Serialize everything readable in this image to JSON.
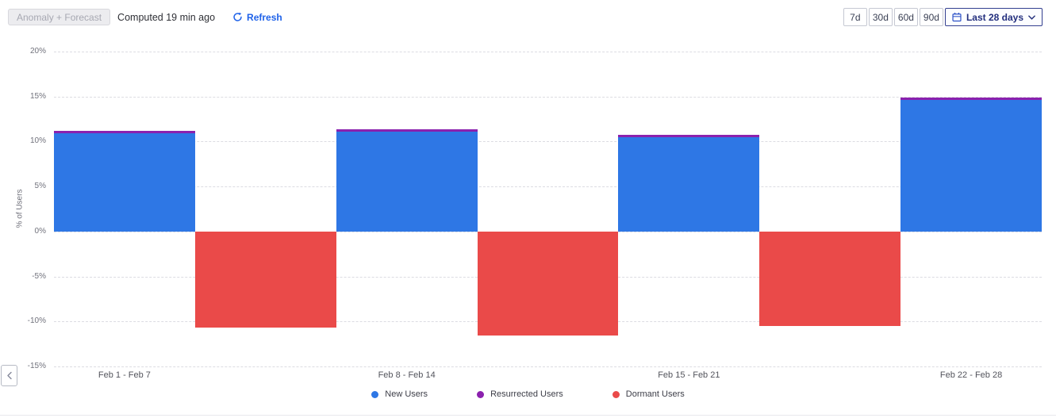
{
  "toolbar": {
    "anomaly_button": "Anomaly + Forecast",
    "computed_text": "Computed 19 min ago",
    "refresh_label": "Refresh",
    "range_buttons": [
      "7d",
      "30d",
      "60d",
      "90d"
    ],
    "date_range_label": "Last 28 days"
  },
  "icons": {
    "refresh": "circular-arrow unicode ↻ drawn as svg, color #1F62E9",
    "calendar": "calendar glyph drawn as svg, color #2B51C7",
    "chevron_down": "v chevron svg, color #27337E",
    "chevron_left": "‹ chevron svg, color #84879A"
  },
  "colors": {
    "new_users": "#2E77E5",
    "resurrected_users": "#8B21AE",
    "dormant_users": "#EA4A49",
    "accent_blue": "#1F62E9",
    "navy_selected": "#232F7E",
    "gridline": "#DCDCE2"
  },
  "chart_data": {
    "type": "bar",
    "title": "",
    "xlabel": "",
    "ylabel": "% of Users",
    "ylim": [
      -15,
      20
    ],
    "ytick_step": 5,
    "ytick_labels": [
      "20%",
      "15%",
      "10%",
      "5%",
      "0%",
      "-5%",
      "-10%",
      "-15%"
    ],
    "grid": "horizontal-dashed",
    "legend_position": "bottom",
    "bar_layout": "grouped, positive bar (New+Resurrected stacked) with adjacent negative bar (Dormant); 4th dormant bar scrolled out of view",
    "categories": [
      "Feb 1 - Feb 7",
      "Feb 8 - Feb 14",
      "Feb 15 - Feb 21",
      "Feb 22 - Feb 28"
    ],
    "series": [
      {
        "name": "New Users",
        "color": "#2E77E5",
        "values": [
          10.9,
          11.1,
          10.5,
          14.6
        ]
      },
      {
        "name": "Resurrected Users",
        "color": "#8B21AE",
        "values": [
          0.25,
          0.25,
          0.25,
          0.25
        ]
      },
      {
        "name": "Dormant Users",
        "color": "#EA4A49",
        "values": [
          -10.7,
          -11.6,
          -10.5,
          null
        ]
      }
    ]
  }
}
